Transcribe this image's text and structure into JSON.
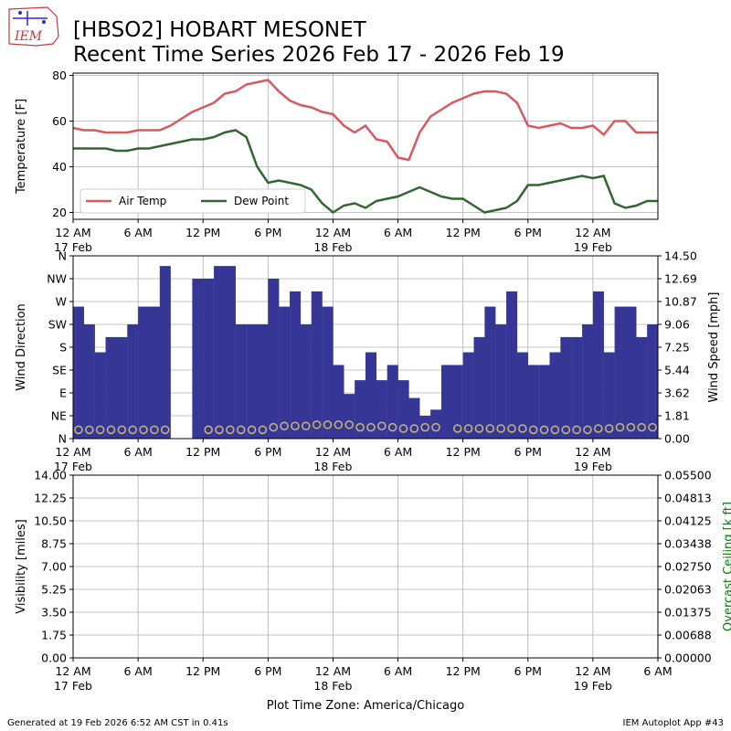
{
  "header": {
    "title_line1": "[HBSO2] HOBART MESONET",
    "title_line2": "Recent Time Series 2026 Feb 17 - 2026 Feb 19",
    "logo_text": "IEM"
  },
  "footer": {
    "generated": "Generated at 19 Feb 2026 6:52 AM CST in 0.41s",
    "app": "IEM Autoplot App #43"
  },
  "colors": {
    "air_temp": "#d9595f",
    "dew_point": "#336633",
    "wind_dir_bar": "#363696",
    "wind_speed_marker": "#c8b97a",
    "ceiling_label": "#008000",
    "grid": "#b0b0b0"
  },
  "x_axis": {
    "range_hours": [
      0,
      54
    ],
    "tick_hours": [
      0,
      6,
      12,
      18,
      24,
      30,
      36,
      42,
      48,
      54
    ],
    "tick_labels": [
      "12 AM",
      "6 AM",
      "12 PM",
      "6 PM",
      "12 AM",
      "6 AM",
      "12 PM",
      "6 PM",
      "12 AM",
      "6 AM"
    ],
    "date_hours": [
      0,
      24,
      48
    ],
    "date_labels": [
      "17 Feb",
      "18 Feb",
      "19 Feb"
    ],
    "xlabel": "Plot Time Zone: America/Chicago"
  },
  "chart_data": [
    {
      "type": "line",
      "ylabel": "Temperature [F]",
      "ylim": [
        17,
        81
      ],
      "yticks": [
        20,
        40,
        60,
        80
      ],
      "grid": true,
      "legend_placement": "lower-left",
      "x": [
        0,
        1,
        2,
        3,
        4,
        5,
        6,
        7,
        8,
        9,
        10,
        11,
        12,
        13,
        14,
        15,
        16,
        17,
        18,
        19,
        20,
        21,
        22,
        23,
        24,
        25,
        26,
        27,
        28,
        29,
        30,
        31,
        32,
        33,
        34,
        35,
        36,
        37,
        38,
        39,
        40,
        41,
        42,
        43,
        44,
        45,
        46,
        47,
        48,
        49,
        50,
        51,
        52,
        53,
        54
      ],
      "series": [
        {
          "name": "Air Temp",
          "values": [
            57,
            56,
            56,
            55,
            55,
            55,
            56,
            56,
            56,
            58,
            61,
            64,
            66,
            68,
            72,
            73,
            76,
            77,
            78,
            73,
            69,
            67,
            66,
            64,
            63,
            58,
            55,
            58,
            52,
            51,
            44,
            43,
            55,
            62,
            65,
            68,
            70,
            72,
            73,
            73,
            72,
            68,
            58,
            57,
            58,
            59,
            57,
            57,
            58,
            54,
            60,
            60,
            55,
            55,
            55
          ]
        },
        {
          "name": "Dew Point",
          "values": [
            48,
            48,
            48,
            48,
            47,
            47,
            48,
            48,
            49,
            50,
            51,
            52,
            52,
            53,
            55,
            56,
            53,
            40,
            33,
            34,
            33,
            32,
            30,
            24,
            20,
            23,
            24,
            22,
            25,
            26,
            27,
            29,
            31,
            29,
            27,
            26,
            26,
            23,
            20,
            21,
            22,
            25,
            32,
            32,
            33,
            34,
            35,
            36,
            35,
            36,
            24,
            22,
            23,
            25,
            25
          ]
        }
      ]
    },
    {
      "type": "bar",
      "ylabel": "Wind Direction",
      "ylim": [
        0,
        360
      ],
      "yticks": [
        0,
        45,
        90,
        135,
        180,
        225,
        270,
        315,
        360
      ],
      "ytick_labels": [
        "N",
        "NE",
        "E",
        "SE",
        "S",
        "SW",
        "W",
        "NW",
        "N"
      ],
      "y2label": "Wind Speed [mph]",
      "y2lim": [
        0,
        14.5
      ],
      "y2ticks": [
        0.0,
        1.81,
        3.62,
        5.44,
        7.25,
        9.06,
        10.87,
        12.69,
        14.5
      ],
      "y2tick_labels": [
        "0.00",
        "1.81",
        "3.62",
        "5.44",
        "7.25",
        "9.06",
        "10.87",
        "12.69",
        "14.50"
      ],
      "grid": true,
      "series": [
        {
          "name": "Wind Direction",
          "x": [
            0.5,
            1.5,
            2.5,
            3.5,
            4.5,
            5.5,
            6.5,
            7.5,
            8.5,
            11.5,
            12.5,
            13.5,
            14.5,
            15.5,
            16.5,
            17.5,
            18.5,
            19.5,
            20.5,
            21.5,
            22.5,
            23.5,
            24.5,
            25.5,
            26.5,
            27.5,
            28.5,
            29.5,
            30.5,
            31.5,
            32.5,
            33.5,
            34.5,
            35.5,
            36.5,
            37.5,
            38.5,
            39.5,
            40.5,
            41.5,
            42.5,
            43.5,
            44.5,
            45.5,
            46.5,
            47.5,
            48.5,
            49.5,
            50.5,
            51.5,
            52.5,
            53.5
          ],
          "values": [
            260,
            225,
            170,
            200,
            200,
            225,
            260,
            260,
            340,
            315,
            315,
            340,
            340,
            225,
            225,
            225,
            315,
            260,
            290,
            225,
            290,
            260,
            145,
            88,
            115,
            170,
            115,
            145,
            115,
            80,
            45,
            57,
            145,
            145,
            170,
            200,
            260,
            225,
            290,
            170,
            145,
            145,
            170,
            200,
            200,
            225,
            290,
            170,
            260,
            260,
            200,
            225
          ]
        },
        {
          "name": "Wind Speed",
          "x": [
            0.5,
            1.5,
            2.5,
            3.5,
            4.5,
            5.5,
            6.5,
            7.5,
            8.5,
            12.5,
            13.5,
            14.5,
            15.5,
            16.5,
            17.5,
            18.5,
            19.5,
            20.5,
            21.5,
            22.5,
            23.5,
            24.5,
            25.5,
            26.5,
            27.5,
            28.5,
            29.5,
            30.5,
            31.5,
            32.5,
            33.5,
            35.5,
            36.5,
            37.5,
            38.5,
            39.5,
            40.5,
            41.5,
            42.5,
            43.5,
            44.5,
            45.5,
            46.5,
            47.5,
            48.5,
            49.5,
            50.5,
            51.5,
            52.5,
            53.5
          ],
          "values": [
            0.7,
            0.7,
            0.7,
            0.7,
            0.7,
            0.7,
            0.7,
            0.7,
            0.7,
            0.7,
            0.7,
            0.7,
            0.7,
            0.7,
            0.7,
            0.9,
            1.0,
            1.0,
            1.0,
            1.1,
            1.1,
            1.1,
            1.1,
            0.9,
            0.9,
            1.0,
            0.9,
            0.8,
            0.8,
            0.9,
            0.9,
            0.8,
            0.8,
            0.8,
            0.8,
            0.8,
            0.8,
            0.8,
            0.7,
            0.7,
            0.7,
            0.7,
            0.7,
            0.7,
            0.8,
            0.8,
            0.9,
            0.9,
            0.9,
            0.9
          ]
        }
      ]
    },
    {
      "type": "line",
      "ylabel": "Visibility [miles]",
      "ylim": [
        0,
        14
      ],
      "yticks": [
        0,
        1.75,
        3.5,
        5.25,
        7,
        8.75,
        10.5,
        12.25,
        14
      ],
      "ytick_labels": [
        "0.00",
        "1.75",
        "3.50",
        "5.25",
        "7.00",
        "8.75",
        "10.50",
        "12.25",
        "14.00"
      ],
      "y2label": "Overcast Ceiling [k ft]",
      "y2lim": [
        0,
        0.055
      ],
      "y2tick_labels": [
        "0.00000",
        "0.00688",
        "0.01375",
        "0.02063",
        "0.02750",
        "0.03438",
        "0.04125",
        "0.04813",
        "0.05500"
      ],
      "grid": true,
      "series": []
    }
  ]
}
